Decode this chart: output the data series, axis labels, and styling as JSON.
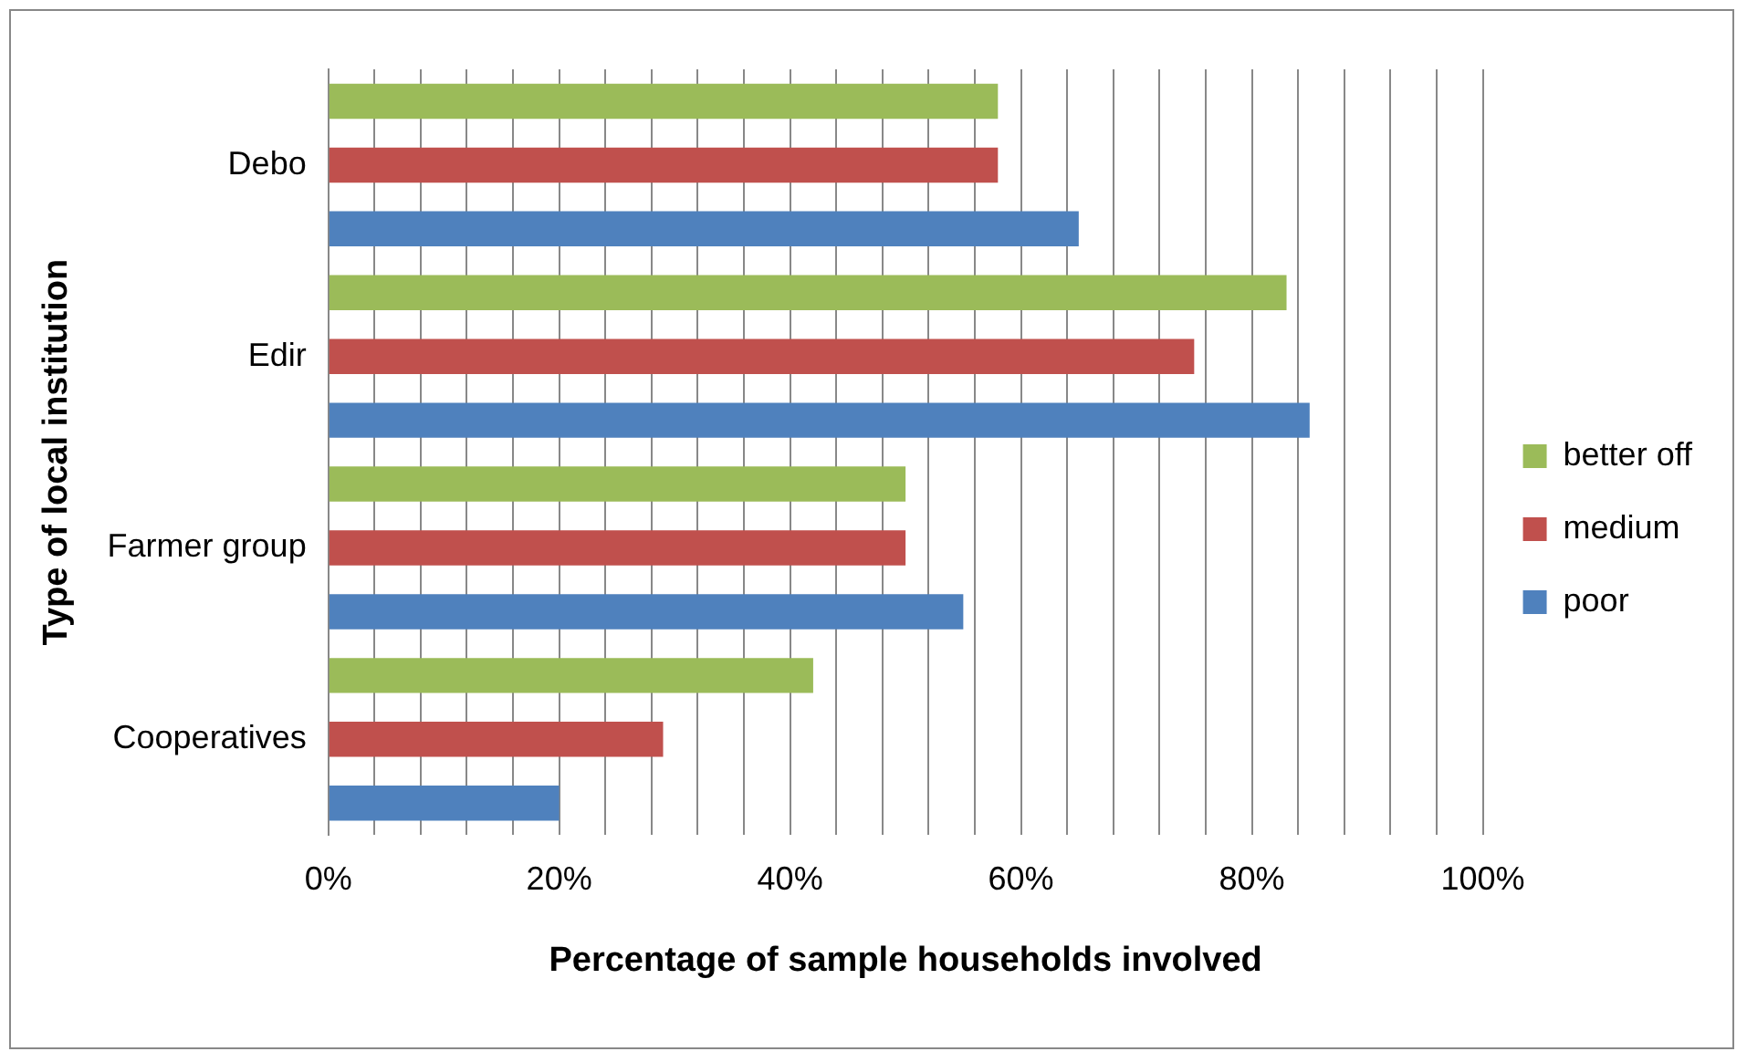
{
  "chart_data": {
    "type": "bar",
    "orientation": "horizontal",
    "xlabel": "Percentage of sample households involved",
    "ylabel": "Type of local institution",
    "categories": [
      "Debo",
      "Edir",
      "Farmer group",
      "Cooperatives"
    ],
    "series": [
      {
        "name": "better off",
        "color": "#9bbb59",
        "values": [
          58,
          83,
          50,
          42
        ]
      },
      {
        "name": "medium",
        "color": "#c0504d",
        "values": [
          58,
          75,
          50,
          29
        ]
      },
      {
        "name": "poor",
        "color": "#4f81bd",
        "values": [
          65,
          85,
          55,
          20
        ]
      }
    ],
    "xlim": [
      0,
      100
    ],
    "xticks": [
      {
        "value": 0,
        "label": "0%"
      },
      {
        "value": 4,
        "label": null
      },
      {
        "value": 8,
        "label": null
      },
      {
        "value": 12,
        "label": null
      },
      {
        "value": 16,
        "label": null
      },
      {
        "value": 20,
        "label": "20%"
      },
      {
        "value": 24,
        "label": null
      },
      {
        "value": 28,
        "label": null
      },
      {
        "value": 32,
        "label": null
      },
      {
        "value": 36,
        "label": null
      },
      {
        "value": 40,
        "label": "40%"
      },
      {
        "value": 44,
        "label": null
      },
      {
        "value": 48,
        "label": null
      },
      {
        "value": 52,
        "label": null
      },
      {
        "value": 56,
        "label": null
      },
      {
        "value": 60,
        "label": "60%"
      },
      {
        "value": 64,
        "label": null
      },
      {
        "value": 68,
        "label": null
      },
      {
        "value": 72,
        "label": null
      },
      {
        "value": 76,
        "label": null
      },
      {
        "value": 80,
        "label": "80%"
      },
      {
        "value": 84,
        "label": null
      },
      {
        "value": 88,
        "label": null
      },
      {
        "value": 92,
        "label": null
      },
      {
        "value": 96,
        "label": null
      },
      {
        "value": 100,
        "label": "100%"
      }
    ],
    "grid": "x",
    "legend": "right"
  }
}
